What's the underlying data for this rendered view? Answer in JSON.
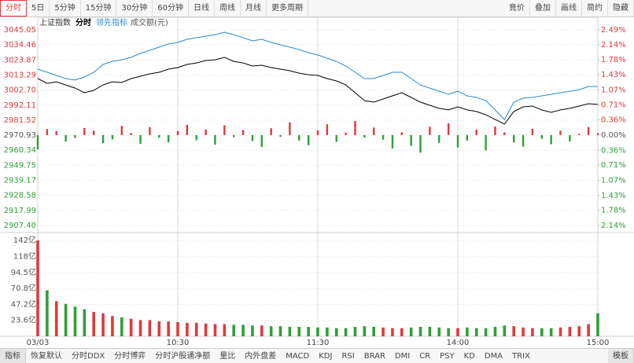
{
  "toolbar": {
    "left": [
      "分时",
      "5日",
      "5分钟",
      "15分钟",
      "30分钟",
      "60分钟",
      "日线",
      "周线",
      "月线",
      "更多周期"
    ],
    "right": [
      "竟价",
      "叠加",
      "画线",
      "简约",
      "隐藏"
    ]
  },
  "tabs": [
    "指标",
    "恢复默认",
    "分时DDX",
    "分时博弈",
    "分时沪股通净额",
    "量比",
    "内外盘差",
    "MACD",
    "KDJ",
    "RSI",
    "BRAR",
    "DMI",
    "CR",
    "PSY",
    "KD",
    "DMA",
    "TRIX",
    "模板"
  ],
  "chart_data": [
    {
      "type": "line",
      "title": "上证指数",
      "x": [
        0,
        4,
        8,
        12,
        16,
        20,
        24,
        28,
        32,
        36,
        40,
        44,
        48,
        52,
        56,
        60,
        64,
        68,
        72,
        76,
        80,
        84,
        88,
        92,
        96,
        100,
        104,
        108,
        112,
        116,
        120,
        124,
        128,
        132,
        136,
        140,
        144,
        148,
        152,
        156,
        160,
        164,
        168,
        172,
        176,
        180,
        184,
        188,
        192,
        196,
        200,
        204,
        208,
        212,
        216,
        220,
        224,
        228,
        232,
        236,
        240
      ],
      "xlim": [
        0,
        240
      ],
      "series": [
        {
          "name": "分时",
          "color": "#000000",
          "values": [
            3010.8,
            3007.4,
            3008.5,
            3006.3,
            3004.1,
            3000.8,
            3002.5,
            3006.3,
            3008.5,
            3008.0,
            3010.8,
            3012.4,
            3014.1,
            3015.2,
            3017.4,
            3018.5,
            3020.7,
            3021.8,
            3023.5,
            3024.0,
            3025.7,
            3022.9,
            3021.8,
            3019.6,
            3020.2,
            3018.5,
            3017.4,
            3016.3,
            3014.6,
            3013.5,
            3013.0,
            3010.8,
            3009.1,
            3006.3,
            3000.8,
            2995.3,
            2994.2,
            2996.4,
            2998.6,
            3000.8,
            2997.5,
            2994.2,
            2992.0,
            2989.8,
            2988.7,
            2990.9,
            2988.7,
            2987.6,
            2985.3,
            2982.0,
            2978.7,
            2987.6,
            2990.9,
            2991.4,
            2988.7,
            2987.0,
            2988.7,
            2989.8,
            2991.4,
            2993.1,
            2992.6
          ]
        },
        {
          "name": "领先指标",
          "color": "#2a8ad4",
          "values": [
            3017.4,
            3015.2,
            3013.0,
            3010.8,
            3009.7,
            3011.9,
            3015.2,
            3020.7,
            3022.9,
            3024.0,
            3025.7,
            3028.5,
            3030.7,
            3032.9,
            3035.1,
            3036.2,
            3038.4,
            3039.5,
            3040.6,
            3041.7,
            3043.4,
            3041.7,
            3039.5,
            3037.3,
            3038.4,
            3036.2,
            3034.5,
            3032.9,
            3031.2,
            3029.0,
            3027.4,
            3025.1,
            3022.9,
            3019.6,
            3015.2,
            3010.8,
            3010.8,
            3013.0,
            3015.2,
            3015.2,
            3010.8,
            3006.3,
            3004.1,
            3001.9,
            2999.7,
            3001.9,
            2998.6,
            2997.5,
            2995.3,
            2988.7,
            2982.0,
            2994.2,
            2997.0,
            2997.5,
            2998.6,
            2999.7,
            3000.8,
            3001.9,
            3003.0,
            3005.2,
            3005.2
          ]
        }
      ],
      "bars": {
        "up_color": "#e0393e",
        "down_color": "#2f9e3a",
        "values": [
          2960.9,
          2975.2,
          2973.8,
          2966.5,
          2968.9,
          2976.0,
          2974.1,
          2965.3,
          2968.0,
          2977.4,
          2972.5,
          2964.8,
          2976.5,
          2969.1,
          2966.0,
          2973.9,
          2978.2,
          2967.4,
          2975.0,
          2964.3,
          2977.9,
          2969.6,
          2974.6,
          2966.9,
          2962.7,
          2975.8,
          2969.8,
          2980.0,
          2967.2,
          2963.9,
          2974.3,
          2978.6,
          2966.3,
          2972.8,
          2980.9,
          2969.2,
          2976.3,
          2967.8,
          2961.6,
          2973.0,
          2963.4,
          2958.7,
          2976.9,
          2965.5,
          2979.3,
          2962.3,
          2967.1,
          2974.8,
          2960.2,
          2977.0,
          2972.9,
          2965.8,
          2962.9,
          2975.5,
          2968.4,
          2964.6,
          2974.0,
          2966.6,
          2971.9,
          2976.7,
          2972.3
        ]
      },
      "ylim": [
        2907.4,
        3045.05
      ],
      "yticks": [
        3045.05,
        3034.46,
        3023.87,
        3013.29,
        {
          "value": 3002.7,
          "label": "3002.70"
        },
        2992.11,
        2981.52,
        2970.93,
        2960.34,
        2949.75,
        2939.17,
        2928.58,
        2917.99,
        {
          "value": 2907.4,
          "label": "2907.40"
        }
      ],
      "y2lim": [
        -2.14,
        2.49
      ],
      "y2ticks": [
        {
          "value": 2.49,
          "label": "2.49%"
        },
        {
          "value": 2.14,
          "label": "2.14%"
        },
        {
          "value": 1.78,
          "label": "1.78%"
        },
        {
          "value": 1.43,
          "label": "1.43%"
        },
        {
          "value": 1.07,
          "label": "1.07%"
        },
        {
          "value": 0.71,
          "label": "0.71%"
        },
        {
          "value": 0.36,
          "label": "0.36%"
        },
        {
          "value": 0,
          "label": "0.00%"
        },
        {
          "value": -0.36,
          "label": "0.36%"
        },
        {
          "value": -0.71,
          "label": "0.71%"
        },
        {
          "value": -1.07,
          "label": "1.07%"
        },
        {
          "value": -1.43,
          "label": "1.43%"
        },
        {
          "value": -1.78,
          "label": "1.78%"
        },
        {
          "value": -2.14,
          "label": "2.14%"
        }
      ],
      "up_color": "#e0393e",
      "down_color": "#2f9e3a",
      "flat_color": "#555555",
      "grid": true
    },
    {
      "type": "bar",
      "title": "成交额(元)",
      "x": [
        0,
        4,
        8,
        12,
        16,
        20,
        24,
        28,
        32,
        36,
        40,
        44,
        48,
        52,
        56,
        60,
        64,
        68,
        72,
        76,
        80,
        84,
        88,
        92,
        96,
        100,
        104,
        108,
        112,
        116,
        120,
        124,
        128,
        132,
        136,
        140,
        144,
        148,
        152,
        156,
        160,
        164,
        168,
        172,
        176,
        180,
        184,
        188,
        192,
        196,
        200,
        204,
        208,
        212,
        216,
        220,
        224,
        228,
        232,
        236,
        240
      ],
      "xlim": [
        0,
        240
      ],
      "xticks": [
        {
          "value": 0,
          "label": "03/03"
        },
        {
          "value": 60,
          "label": "10:30"
        },
        {
          "value": 120,
          "label": "11:30"
        },
        {
          "value": 180,
          "label": "14:00"
        },
        {
          "value": 240,
          "label": "15:00"
        }
      ],
      "values": [
        142,
        68,
        52,
        48,
        44,
        40,
        36,
        34,
        30,
        28,
        26,
        24,
        24,
        22,
        22,
        21,
        20,
        20,
        19,
        18,
        18,
        17,
        17,
        16,
        16,
        15,
        15,
        14,
        14,
        14,
        13,
        13,
        12,
        12,
        14,
        15,
        14,
        13,
        12,
        12,
        13,
        14,
        14,
        13,
        12,
        12,
        13,
        12,
        12,
        14,
        16,
        15,
        13,
        12,
        12,
        12,
        13,
        14,
        15,
        18,
        34
      ],
      "ylim": [
        0,
        142
      ],
      "yticks": [
        {
          "value": 142,
          "label": "142亿"
        },
        {
          "value": 118,
          "label": "118亿"
        },
        {
          "value": 94.5,
          "label": "94.5亿"
        },
        {
          "value": 70.8,
          "label": "70.8亿"
        },
        {
          "value": 47.2,
          "label": "47.2亿"
        },
        {
          "value": 23.6,
          "label": "23.6亿"
        }
      ],
      "up_color": "#e0393e",
      "down_color": "#2f9e3a"
    }
  ]
}
